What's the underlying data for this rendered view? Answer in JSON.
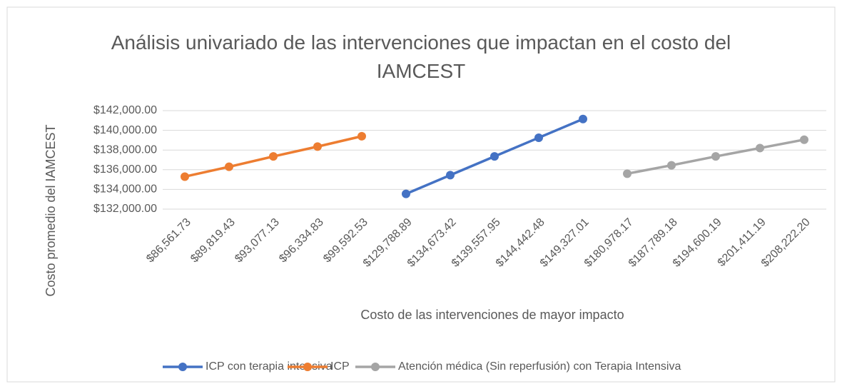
{
  "chart_data": {
    "type": "line",
    "title": "Análisis univariado de las intervenciones que impactan en el costo del IAMCEST",
    "x_label": "Costo de las intervenciones de mayor impacto",
    "y_label": "Costo promedio del IAMCEST",
    "categories": [
      "$86,561.73",
      "$89,819.43",
      "$93,077.13",
      "$96,334.83",
      "$99,592.53",
      "$129,788.89",
      "$134,673.42",
      "$139,557.95",
      "$144,442.48",
      "$149,327.01",
      "$180,978.17",
      "$187,789.18",
      "$194,600.19",
      "$201,411.19",
      "$208,222.20"
    ],
    "series": [
      {
        "name": "ICP con terapia intensiva",
        "color": "#4472c4",
        "values": [
          null,
          null,
          null,
          null,
          null,
          133550,
          135450,
          137350,
          139250,
          141150,
          null,
          null,
          null,
          null,
          null
        ]
      },
      {
        "name": "ICP",
        "color": "#ed7d31",
        "values": [
          135300,
          136300,
          137350,
          138350,
          139400,
          null,
          null,
          null,
          null,
          null,
          null,
          null,
          null,
          null,
          null
        ]
      },
      {
        "name": "Atención médica (Sin reperfusión) con Terapia Intensiva",
        "color": "#a5a5a5",
        "values": [
          null,
          null,
          null,
          null,
          null,
          null,
          null,
          null,
          null,
          null,
          135600,
          136450,
          137350,
          138200,
          139050
        ]
      }
    ],
    "ylim": [
      132000,
      142000
    ],
    "yticks": [
      {
        "value": 132000,
        "label": "$132,000.00"
      },
      {
        "value": 134000,
        "label": "$134,000.00"
      },
      {
        "value": 136000,
        "label": "$136,000.00"
      },
      {
        "value": 138000,
        "label": "$138,000.00"
      },
      {
        "value": 140000,
        "label": "$140,000.00"
      },
      {
        "value": 142000,
        "label": "$142,000.00"
      }
    ],
    "grid": true,
    "legend": "bottom"
  }
}
